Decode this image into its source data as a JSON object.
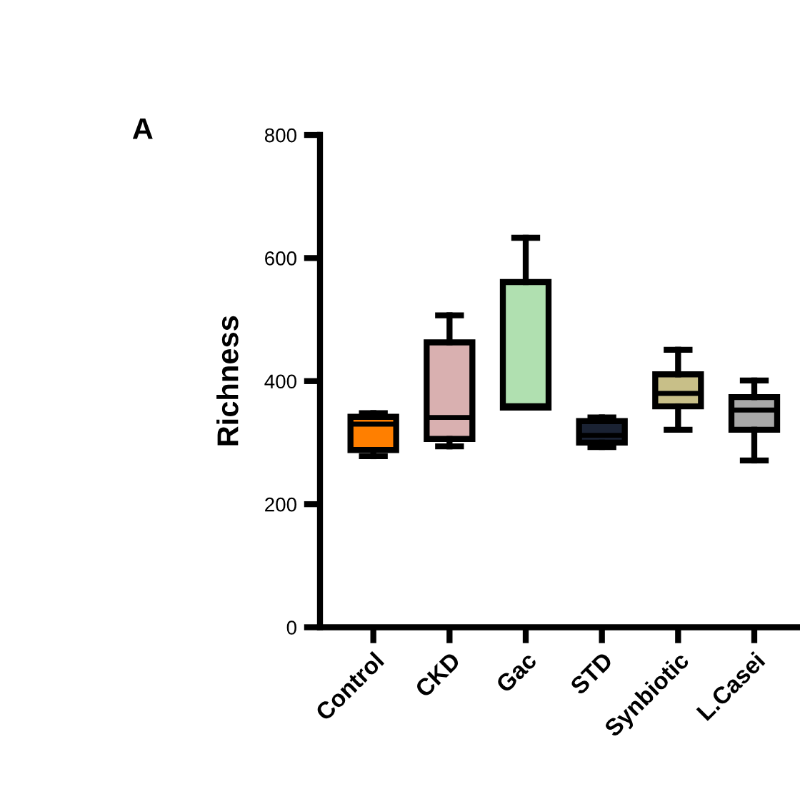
{
  "chart_data": {
    "type": "box",
    "ylabel": "Richness",
    "annotations": [
      "A"
    ],
    "categories": [
      "Control",
      "CKD",
      "Gac",
      "STD",
      "Synbiotic",
      "L.Casei"
    ],
    "colors": [
      "#ff7f00",
      "#d9b0b0",
      "#b0e0b0",
      "#1a2233",
      "#c8bf88",
      "#a8a8a8"
    ],
    "boxes": [
      {
        "low": 278,
        "q1": 288,
        "median": 330,
        "q3": 342,
        "high": 348
      },
      {
        "low": 294,
        "q1": 306,
        "median": 341,
        "q3": 463,
        "high": 507
      },
      {
        "low": 357,
        "q1": 357,
        "median": 360,
        "q3": 561,
        "high": 633
      },
      {
        "low": 293,
        "q1": 300,
        "median": 312,
        "q3": 335,
        "high": 341
      },
      {
        "low": 321,
        "q1": 359,
        "median": 380,
        "q3": 411,
        "high": 451
      },
      {
        "low": 271,
        "q1": 321,
        "median": 353,
        "q3": 374,
        "high": 401
      }
    ],
    "ylim": [
      0,
      800
    ],
    "yticks": [
      0,
      200,
      400,
      600,
      800
    ],
    "grid": false,
    "legend": false
  }
}
